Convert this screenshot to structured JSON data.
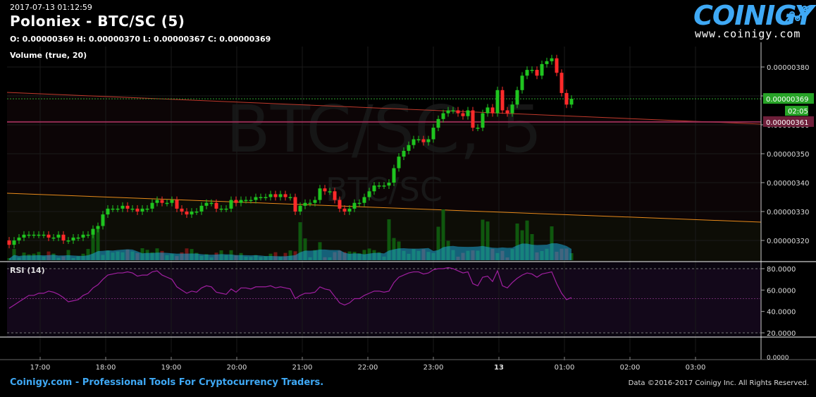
{
  "header": {
    "timestamp": "2017-07-13 01:12:59",
    "title": "Poloniex - BTC/SC (5)",
    "ohlc": "O: 0.00000369 H: 0.00000370 L: 0.00000367 C: 0.00000369",
    "volume_label": "Volume (true, 20)",
    "rsi_label": "RSI (14)"
  },
  "logo": {
    "word": "COINIGY",
    "url": "www.coinigy.com"
  },
  "footer": {
    "tagline": "Coinigy.com - Professional Tools For Cryptocurrency Traders.",
    "copyright": "Data ©2016-2017 Coinigy Inc. All Rights Reserved."
  },
  "watermark": {
    "big": "BTC/SC, 5",
    "small": "BTC/SC"
  },
  "colors": {
    "up": "#1fc41f",
    "down": "#ff2a2a",
    "last_price_bg": "#27a327",
    "line_price_bg": "#6e1f3a",
    "rsi_line": "#a01fa0",
    "volume_area": "#1ea8d8",
    "trend_upper": "#c0392b",
    "trend_lower": "#e88a1a"
  },
  "chart_data": [
    {
      "type": "candlestick",
      "name": "price",
      "x_unit": "time (5-minute candles)",
      "xticks": [
        "17:00",
        "18:00",
        "19:00",
        "20:00",
        "21:00",
        "22:00",
        "23:00",
        "13",
        "01:00",
        "02:00",
        "03:00"
      ],
      "yticks": [
        "0.00000320",
        "0.00000330",
        "0.00000340",
        "0.00000350",
        "0.00000360",
        "0.00000370",
        "0.00000380"
      ],
      "ylim": [
        3.15e-06,
        3.88e-06
      ],
      "last_price_label": "0.00000369",
      "countdown_label": "02:05",
      "line_price_label": "0.00000361",
      "close_values": [
        3.185e-06,
        3.2e-06,
        3.21e-06,
        3.22e-06,
        3.22e-06,
        3.22e-06,
        3.22e-06,
        3.22e-06,
        3.21e-06,
        3.21e-06,
        3.22e-06,
        3.2e-06,
        3.2e-06,
        3.21e-06,
        3.21e-06,
        3.22e-06,
        3.22e-06,
        3.24e-06,
        3.25e-06,
        3.29e-06,
        3.31e-06,
        3.31e-06,
        3.31e-06,
        3.32e-06,
        3.31e-06,
        3.31e-06,
        3.3e-06,
        3.31e-06,
        3.31e-06,
        3.33e-06,
        3.34e-06,
        3.33e-06,
        3.33e-06,
        3.34e-06,
        3.31e-06,
        3.3e-06,
        3.29e-06,
        3.3e-06,
        3.3e-06,
        3.32e-06,
        3.33e-06,
        3.33e-06,
        3.31e-06,
        3.31e-06,
        3.31e-06,
        3.34e-06,
        3.33e-06,
        3.34e-06,
        3.34e-06,
        3.34e-06,
        3.35e-06,
        3.35e-06,
        3.35e-06,
        3.36e-06,
        3.35e-06,
        3.36e-06,
        3.35e-06,
        3.35e-06,
        3.3e-06,
        3.32e-06,
        3.33e-06,
        3.33e-06,
        3.34e-06,
        3.38e-06,
        3.37e-06,
        3.37e-06,
        3.34e-06,
        3.31e-06,
        3.3e-06,
        3.31e-06,
        3.33e-06,
        3.33e-06,
        3.35e-06,
        3.37e-06,
        3.39e-06,
        3.39e-06,
        3.39e-06,
        3.4e-06,
        3.45e-06,
        3.49e-06,
        3.51e-06,
        3.53e-06,
        3.55e-06,
        3.55e-06,
        3.54e-06,
        3.55e-06,
        3.59e-06,
        3.62e-06,
        3.64e-06,
        3.65e-06,
        3.65e-06,
        3.64e-06,
        3.63e-06,
        3.65e-06,
        3.59e-06,
        3.59e-06,
        3.64e-06,
        3.66e-06,
        3.64e-06,
        3.72e-06,
        3.65e-06,
        3.64e-06,
        3.67e-06,
        3.72e-06,
        3.77e-06,
        3.79e-06,
        3.79e-06,
        3.77e-06,
        3.81e-06,
        3.82e-06,
        3.83e-06,
        3.78e-06,
        3.71e-06,
        3.67e-06,
        3.69e-06
      ]
    },
    {
      "type": "bar",
      "name": "volume",
      "note": "relative volume per candle, with moving-average area"
    },
    {
      "type": "line",
      "name": "RSI (14)",
      "yticks": [
        "20.0000",
        "40.0000",
        "60.0000",
        "80.0000"
      ],
      "extra_tick": "0.0000",
      "ylim": [
        0,
        100
      ],
      "levels": [
        20,
        80
      ],
      "values": [
        43,
        46,
        49,
        52,
        55,
        55,
        57,
        57,
        59,
        58,
        56,
        53,
        49,
        50,
        51,
        55,
        57,
        62,
        65,
        70,
        74,
        75,
        76,
        76,
        77,
        76,
        73,
        74,
        74,
        77,
        78,
        74,
        72,
        70,
        63,
        60,
        57,
        59,
        58,
        62,
        64,
        63,
        58,
        57,
        56,
        61,
        58,
        62,
        62,
        61,
        63,
        63,
        63,
        64,
        62,
        63,
        62,
        61,
        52,
        55,
        57,
        57,
        58,
        63,
        61,
        60,
        54,
        48,
        46,
        48,
        52,
        52,
        55,
        57,
        59,
        59,
        58,
        59,
        67,
        72,
        74,
        76,
        77,
        77,
        75,
        76,
        79,
        80,
        80,
        81,
        80,
        78,
        76,
        77,
        66,
        64,
        72,
        73,
        68,
        78,
        64,
        62,
        67,
        71,
        74,
        76,
        75,
        72,
        75,
        76,
        77,
        66,
        57,
        51,
        53
      ]
    }
  ]
}
